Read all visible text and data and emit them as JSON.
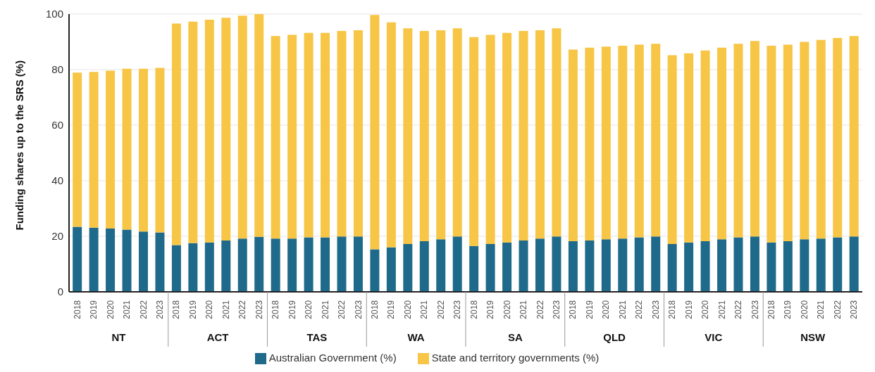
{
  "chart_data": {
    "type": "bar",
    "stacked": true,
    "ylabel": "Funding shares up to the SRS (%)",
    "categories": [
      "2018",
      "2019",
      "2020",
      "2021",
      "2022",
      "2023",
      "2018",
      "2019",
      "2020",
      "2021",
      "2022",
      "2023",
      "2018",
      "2019",
      "2020",
      "2021",
      "2022",
      "2023",
      "2018",
      "2019",
      "2020",
      "2021",
      "2022",
      "2023",
      "2018",
      "2019",
      "2020",
      "2021",
      "2022",
      "2023",
      "2018",
      "2019",
      "2020",
      "2021",
      "2022",
      "2023",
      "2018",
      "2019",
      "2020",
      "2021",
      "2022",
      "2023",
      "2018",
      "2019",
      "2020",
      "2021",
      "2022",
      "2023"
    ],
    "annotations": [
      "NT",
      "ACT",
      "TAS",
      "WA",
      "SA",
      "QLD",
      "VIC",
      "NSW"
    ],
    "series": [
      {
        "name": "Australian Government (%)",
        "color": "#1f6a8a",
        "values": [
          23.4,
          23.1,
          22.8,
          22.4,
          21.7,
          21.4,
          16.8,
          17.5,
          17.8,
          18.5,
          19.2,
          19.8,
          19.2,
          19.2,
          19.6,
          19.6,
          19.9,
          19.9,
          15.3,
          16.0,
          17.2,
          18.2,
          18.9,
          19.9,
          16.5,
          17.2,
          17.8,
          18.5,
          19.2,
          19.9,
          18.2,
          18.5,
          18.9,
          19.2,
          19.6,
          19.9,
          17.2,
          17.8,
          18.2,
          18.9,
          19.6,
          19.9,
          17.8,
          18.2,
          18.9,
          19.2,
          19.6,
          19.9
        ]
      },
      {
        "name": "State and territory governments (%)",
        "color": "#f7c646",
        "values": [
          55.5,
          56.1,
          56.8,
          57.9,
          58.6,
          59.2,
          79.8,
          79.8,
          80.2,
          80.2,
          80.2,
          80.2,
          72.9,
          73.3,
          73.6,
          73.6,
          74.0,
          74.3,
          84.4,
          81.0,
          77.7,
          75.7,
          75.3,
          75.0,
          75.2,
          75.3,
          75.4,
          75.4,
          75.0,
          75.0,
          69.0,
          69.4,
          69.4,
          69.4,
          69.4,
          69.4,
          68.0,
          68.1,
          68.7,
          69.0,
          69.7,
          70.4,
          70.8,
          70.8,
          71.1,
          71.5,
          71.8,
          72.2
        ]
      }
    ],
    "ylim": [
      0,
      100
    ],
    "yticks": [
      0,
      20,
      40,
      60,
      80,
      100
    ],
    "grid": "y",
    "legend": "bottom"
  }
}
